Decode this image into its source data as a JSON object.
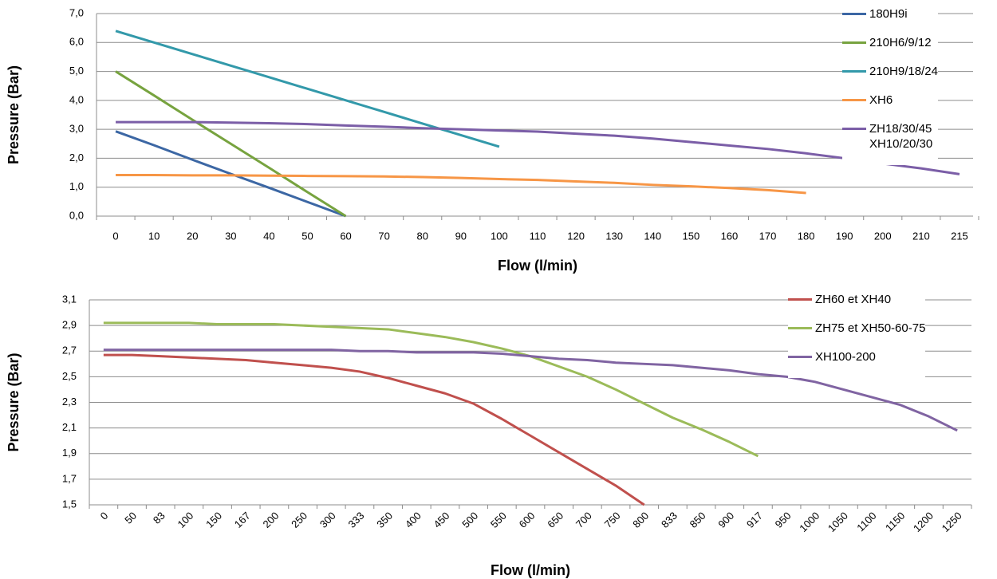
{
  "chart_data": [
    {
      "type": "line",
      "x_label": "Flow (l/min)",
      "y_label": "Pressure (Bar)",
      "categories": [
        "0",
        "10",
        "20",
        "30",
        "40",
        "50",
        "60",
        "70",
        "80",
        "90",
        "100",
        "110",
        "120",
        "130",
        "140",
        "150",
        "160",
        "170",
        "180",
        "190",
        "200",
        "210",
        "215"
      ],
      "ylim": [
        0,
        7
      ],
      "yticks": [
        {
          "value": 0,
          "label": "0,0"
        },
        {
          "value": 1,
          "label": "1,0"
        },
        {
          "value": 2,
          "label": "2,0"
        },
        {
          "value": 3,
          "label": "3,0"
        },
        {
          "value": 4,
          "label": "4,0"
        },
        {
          "value": 5,
          "label": "5,0"
        },
        {
          "value": 6,
          "label": "6,0"
        },
        {
          "value": 7,
          "label": "7,0"
        }
      ],
      "grid": true,
      "legend": "right",
      "series": [
        {
          "name": "180H9i",
          "color": "#3c67a4",
          "values": [
            2.93,
            2.45,
            1.95,
            1.46,
            0.98,
            0.49,
            0,
            null,
            null,
            null,
            null,
            null,
            null,
            null,
            null,
            null,
            null,
            null,
            null,
            null,
            null,
            null,
            null
          ]
        },
        {
          "name": "210H6/9/12",
          "color": "#77a33f",
          "values": [
            5.0,
            4.17,
            3.33,
            2.5,
            1.67,
            0.83,
            0,
            null,
            null,
            null,
            null,
            null,
            null,
            null,
            null,
            null,
            null,
            null,
            null,
            null,
            null,
            null,
            null
          ]
        },
        {
          "name": "210H9/18/24",
          "color": "#3399aa",
          "values": [
            6.4,
            6.0,
            5.6,
            5.2,
            4.8,
            4.4,
            4.0,
            3.6,
            3.2,
            2.8,
            2.4,
            null,
            null,
            null,
            null,
            null,
            null,
            null,
            null,
            null,
            null,
            null,
            null
          ]
        },
        {
          "name": "XH6",
          "color": "#f79646",
          "values": [
            1.42,
            1.42,
            1.41,
            1.41,
            1.4,
            1.39,
            1.38,
            1.37,
            1.35,
            1.32,
            1.28,
            1.25,
            1.2,
            1.15,
            1.08,
            1.03,
            0.97,
            0.9,
            0.8,
            null,
            null,
            null,
            null
          ]
        },
        {
          "name": "ZH18/30/45\nXH10/20/30",
          "color": "#7b5ea7",
          "values": [
            3.25,
            3.25,
            3.25,
            3.23,
            3.21,
            3.18,
            3.13,
            3.09,
            3.04,
            3.0,
            2.96,
            2.92,
            2.85,
            2.78,
            2.68,
            2.56,
            2.44,
            2.32,
            2.17,
            2.0,
            1.82,
            1.65,
            1.45
          ]
        }
      ]
    },
    {
      "type": "line",
      "x_label": "Flow (l/min)",
      "y_label": "Pressure (Bar)",
      "categories": [
        "0",
        "50",
        "83",
        "100",
        "150",
        "167",
        "200",
        "250",
        "300",
        "333",
        "350",
        "400",
        "450",
        "500",
        "550",
        "600",
        "650",
        "700",
        "750",
        "800",
        "833",
        "850",
        "900",
        "917",
        "950",
        "1000",
        "1050",
        "1100",
        "1150",
        "1200",
        "1250"
      ],
      "ylim": [
        1.5,
        3.1
      ],
      "yticks": [
        {
          "value": 1.5,
          "label": "1,5"
        },
        {
          "value": 1.7,
          "label": "1,7"
        },
        {
          "value": 1.9,
          "label": "1,9"
        },
        {
          "value": 2.1,
          "label": "2,1"
        },
        {
          "value": 2.3,
          "label": "2,3"
        },
        {
          "value": 2.5,
          "label": "2,5"
        },
        {
          "value": 2.7,
          "label": "2,7"
        },
        {
          "value": 2.9,
          "label": "2,9"
        },
        {
          "value": 3.1,
          "label": "3,1"
        }
      ],
      "grid": true,
      "legend": "right",
      "series": [
        {
          "name": "ZH60 et XH40",
          "color": "#c0504d",
          "values": [
            2.67,
            2.67,
            2.66,
            2.65,
            2.64,
            2.63,
            2.61,
            2.59,
            2.57,
            2.54,
            2.49,
            2.43,
            2.37,
            2.29,
            2.17,
            2.04,
            1.91,
            1.78,
            1.65,
            1.5,
            null,
            null,
            null,
            null,
            null,
            null,
            null,
            null,
            null,
            null,
            null
          ]
        },
        {
          "name": "ZH75 et XH50-60-75",
          "color": "#9bbb59",
          "values": [
            2.92,
            2.92,
            2.92,
            2.92,
            2.91,
            2.91,
            2.91,
            2.9,
            2.89,
            2.88,
            2.87,
            2.84,
            2.81,
            2.77,
            2.72,
            2.66,
            2.58,
            2.5,
            2.4,
            2.29,
            2.18,
            2.09,
            1.99,
            1.88,
            null,
            null,
            null,
            null,
            null,
            null,
            null
          ]
        },
        {
          "name": "XH100-200",
          "color": "#8064a2",
          "values": [
            2.71,
            2.71,
            2.71,
            2.71,
            2.71,
            2.71,
            2.71,
            2.71,
            2.71,
            2.7,
            2.7,
            2.69,
            2.69,
            2.69,
            2.68,
            2.66,
            2.64,
            2.63,
            2.61,
            2.6,
            2.59,
            2.57,
            2.55,
            2.52,
            2.5,
            2.46,
            2.4,
            2.34,
            2.28,
            2.19,
            2.08
          ]
        }
      ]
    }
  ]
}
